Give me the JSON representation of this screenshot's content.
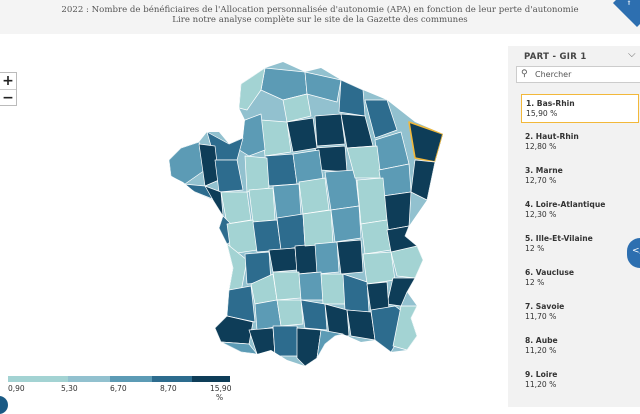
{
  "header": {
    "line1": "2022 : Nombre de bénéficiaires de l'Allocation personnalisée d'autonomie (APA) en fonction de leur perte d'autonomie",
    "line2": "Lire notre analyse complète sur le site de la Gazette des communes"
  },
  "zoom": {
    "in_label": "+",
    "out_label": "−"
  },
  "colors": {
    "very_light": "#a3d3d3",
    "light": "#92c1cf",
    "medium": "#5c9bb5",
    "dark": "#2d6c8e",
    "darkest": "#0e3d58",
    "highlight_border": "#f2b83a"
  },
  "legend": {
    "breaks": [
      "0,90",
      "5,30",
      "6,70",
      "8,70",
      "15,90"
    ],
    "unit": "%"
  },
  "panel": {
    "title": "PART - GIR 1",
    "search_placeholder": "Chercher",
    "items": [
      {
        "rank_name": "1. Bas-Rhin",
        "value": "15,90 %",
        "selected": true
      },
      {
        "rank_name": "2. Haut-Rhin",
        "value": "12,80 %"
      },
      {
        "rank_name": "3. Marne",
        "value": "12,70 %"
      },
      {
        "rank_name": "4. Loire-Atlantique",
        "value": "12,30 %"
      },
      {
        "rank_name": "5. Ille-Et-Vilaine",
        "value": "12 %"
      },
      {
        "rank_name": "6. Vaucluse",
        "value": "12 %"
      },
      {
        "rank_name": "7. Savoie",
        "value": "11,70 %"
      },
      {
        "rank_name": "8. Aube",
        "value": "11,20 %"
      },
      {
        "rank_name": "9. Loire",
        "value": "11,20 %"
      }
    ]
  }
}
